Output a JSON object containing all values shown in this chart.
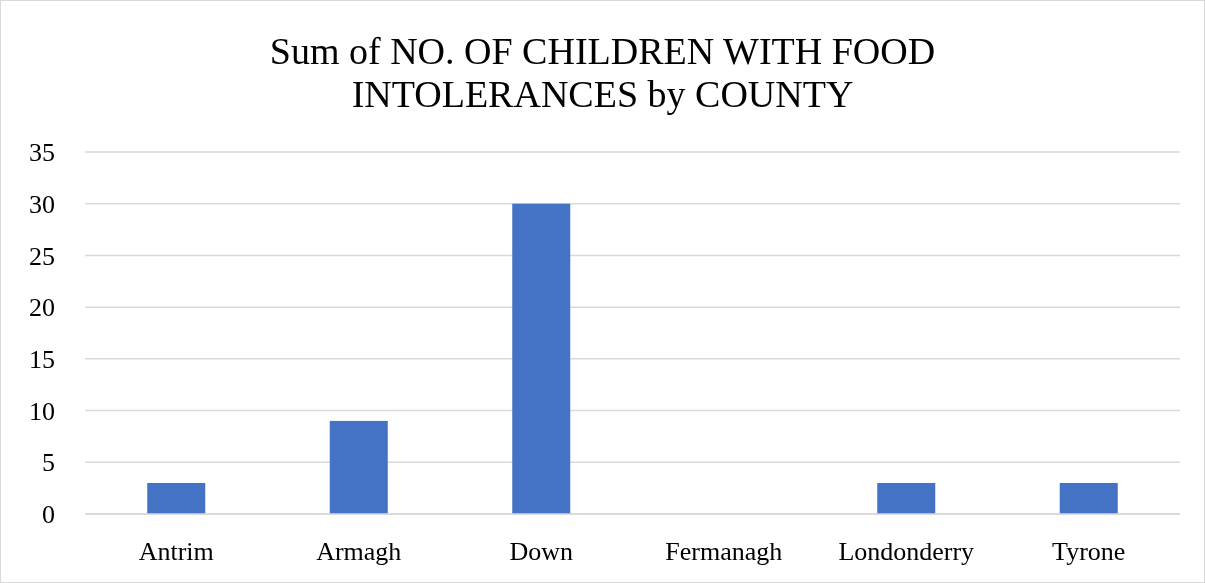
{
  "chart_data": {
    "type": "bar",
    "title": "Sum of NO. OF CHILDREN WITH FOOD INTOLERANCES by COUNTY",
    "categories": [
      "Antrim",
      "Armagh",
      "Down",
      "Fermanagh",
      "Londonderry",
      "Tyrone"
    ],
    "values": [
      3,
      9,
      30,
      0,
      3,
      3
    ],
    "color": "#4472c4",
    "ylim": [
      0,
      35
    ],
    "yticks": [
      0,
      5,
      10,
      15,
      20,
      25,
      30,
      35
    ],
    "grid": "y"
  }
}
